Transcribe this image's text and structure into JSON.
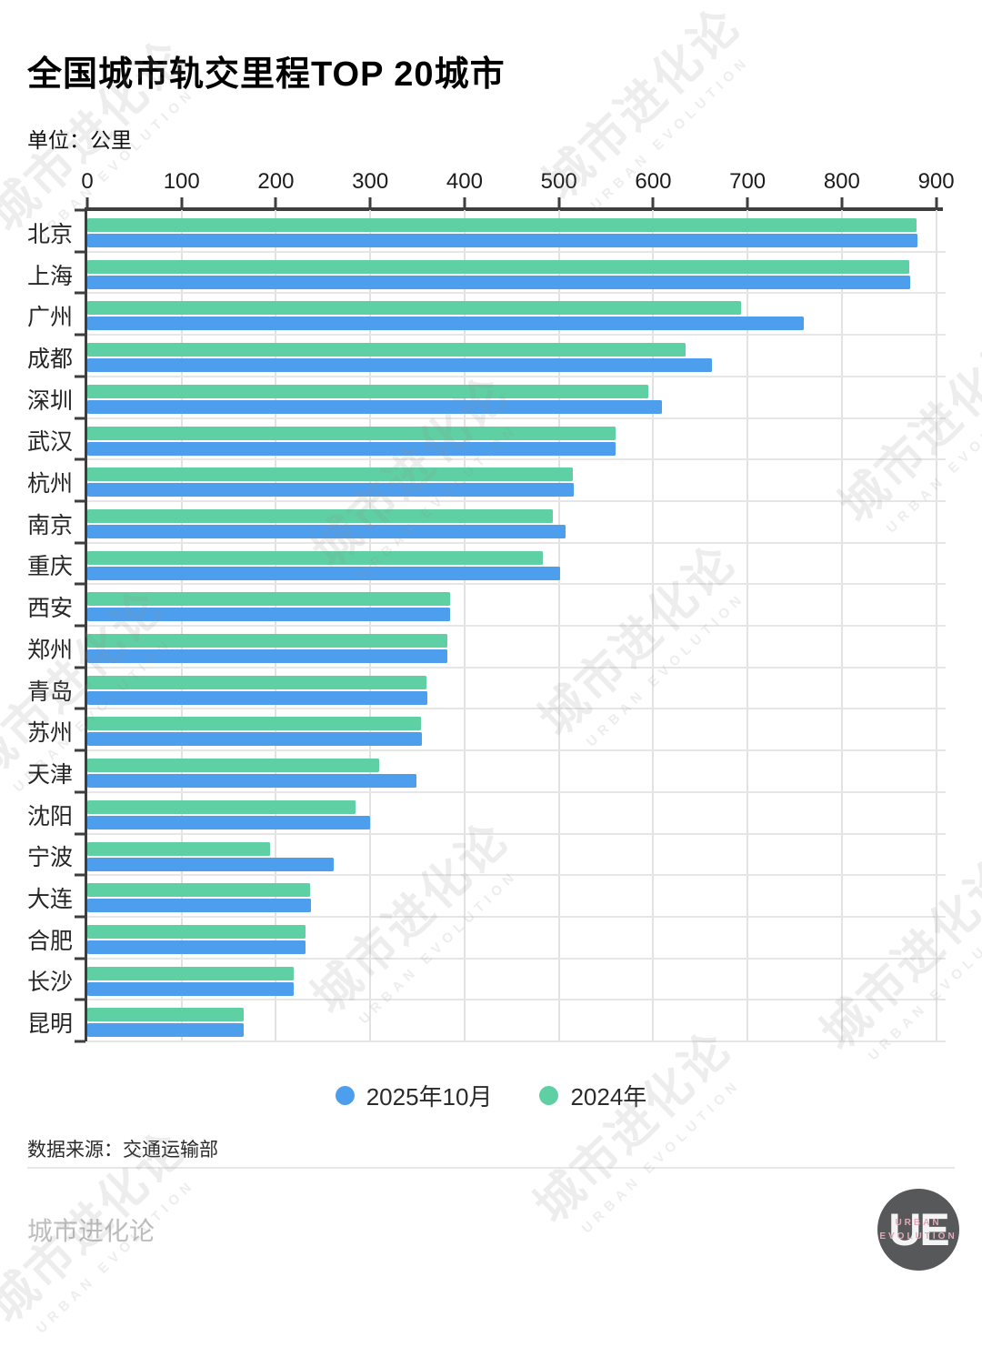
{
  "header": {
    "title": "全国城市轨交里程TOP 20城市",
    "unit": "单位：公里"
  },
  "chart_data": {
    "type": "bar",
    "orientation": "horizontal",
    "title": "全国城市轨交里程TOP 20城市",
    "unit_label": "单位：公里",
    "x_axis": {
      "min": 0,
      "max": 900,
      "tick_step": 100,
      "ticks": [
        0,
        100,
        200,
        300,
        400,
        500,
        600,
        700,
        800,
        900
      ]
    },
    "grid": true,
    "legend_position": "bottom",
    "series_names": [
      "2025年10月",
      "2024年"
    ],
    "cities": [
      {
        "name": "北京",
        "v2025": 880,
        "v2024": 879
      },
      {
        "name": "上海",
        "v2025": 872,
        "v2024": 871
      },
      {
        "name": "广州",
        "v2025": 760,
        "v2024": 693
      },
      {
        "name": "成都",
        "v2025": 662,
        "v2024": 634
      },
      {
        "name": "深圳",
        "v2025": 609,
        "v2024": 595
      },
      {
        "name": "武汉",
        "v2025": 560,
        "v2024": 560
      },
      {
        "name": "杭州",
        "v2025": 516,
        "v2024": 515
      },
      {
        "name": "南京",
        "v2025": 507,
        "v2024": 494
      },
      {
        "name": "重庆",
        "v2025": 501,
        "v2024": 483
      },
      {
        "name": "西安",
        "v2025": 385,
        "v2024": 385
      },
      {
        "name": "郑州",
        "v2025": 382,
        "v2024": 382
      },
      {
        "name": "青岛",
        "v2025": 361,
        "v2024": 360
      },
      {
        "name": "苏州",
        "v2025": 355,
        "v2024": 354
      },
      {
        "name": "天津",
        "v2025": 349,
        "v2024": 309
      },
      {
        "name": "沈阳",
        "v2025": 300,
        "v2024": 284
      },
      {
        "name": "宁波",
        "v2025": 261,
        "v2024": 194
      },
      {
        "name": "大连",
        "v2025": 237,
        "v2024": 236
      },
      {
        "name": "合肥",
        "v2025": 231,
        "v2024": 231
      },
      {
        "name": "长沙",
        "v2025": 219,
        "v2024": 219
      },
      {
        "name": "昆明",
        "v2025": 166,
        "v2024": 166
      }
    ]
  },
  "legend": {
    "items": [
      {
        "label": "2025年10月",
        "color": "#4d9fee"
      },
      {
        "label": "2024年",
        "color": "#5ed0a4"
      }
    ]
  },
  "colors": {
    "blue": "#4d9fee",
    "green": "#5ed0a4",
    "axis": "#3e3e3e",
    "grid": "#e4e4e4"
  },
  "footer": {
    "source": "数据来源：交通运输部",
    "brand": "城市进化论"
  },
  "logo": {
    "monogram": "UE",
    "line1": "URBAN",
    "line2": "EVOLUTION"
  },
  "watermark": {
    "text": "城市进化论",
    "subtext": "URBAN EVOLUTION"
  }
}
